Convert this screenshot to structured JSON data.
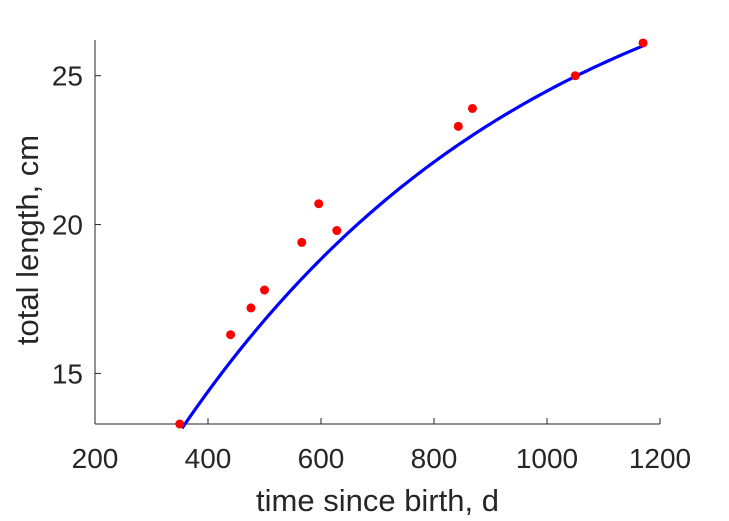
{
  "chart_data": {
    "type": "scatter",
    "title": "",
    "xlabel": "time since birth, d",
    "ylabel": "total length, cm",
    "xlim": [
      200,
      1200
    ],
    "ylim": [
      13.3,
      26.2
    ],
    "xticks": [
      200,
      400,
      600,
      800,
      1000,
      1200
    ],
    "yticks": [
      15,
      20,
      25
    ],
    "grid": false,
    "legend": "none",
    "colors": {
      "points": "#ff0000",
      "fit": "#0000ff",
      "axes": "#262626"
    },
    "series": [
      {
        "type": "scatter",
        "x": [
          350,
          440,
          476,
          500,
          566,
          596,
          628,
          843,
          868,
          1050,
          1170
        ],
        "y": [
          13.3,
          16.3,
          17.2,
          17.8,
          19.4,
          20.7,
          19.8,
          23.3,
          23.9,
          25.0,
          26.1
        ]
      },
      {
        "type": "line",
        "function": "von_bertalanffy",
        "params": {
          "Linf": 31.0,
          "L0": 0.0,
          "k": 0.00156
        },
        "x_range": [
          354,
          1170
        ]
      }
    ]
  }
}
